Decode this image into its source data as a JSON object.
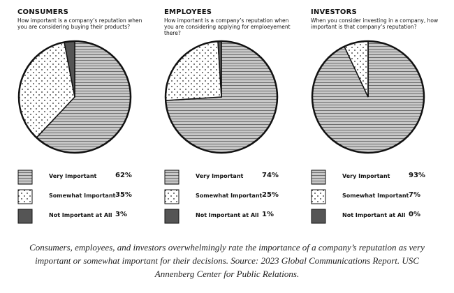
{
  "chart_data": [
    {
      "type": "pie",
      "title": "CONSUMERS",
      "subtitle": "How important is a company’s reputation when you are considering buying their products?",
      "categories": [
        "Very Important",
        "Somewhat Important",
        "Not Important at All"
      ],
      "values": [
        62,
        35,
        3
      ],
      "value_labels": [
        "62%",
        "35%",
        "3%"
      ],
      "colors": [
        "#c8c8c8",
        "#ffffff",
        "#555555"
      ],
      "patterns": [
        "lines",
        "dots",
        "solid"
      ]
    },
    {
      "type": "pie",
      "title": "EMPLOYEES",
      "subtitle": "How important is a company’s reputation when you are considering applying for emploeyement there?",
      "categories": [
        "Very Important",
        "Somewhat Important",
        "Not Important at All"
      ],
      "values": [
        74,
        25,
        1
      ],
      "value_labels": [
        "74%",
        "25%",
        "1%"
      ],
      "colors": [
        "#c8c8c8",
        "#ffffff",
        "#555555"
      ],
      "patterns": [
        "lines",
        "dots",
        "solid"
      ]
    },
    {
      "type": "pie",
      "title": "INVESTORS",
      "subtitle": "When you consider investing in a company, how important is that company’s reputation?",
      "categories": [
        "Very Important",
        "Somewhat Important",
        "Not Important at All"
      ],
      "values": [
        93,
        7,
        0
      ],
      "value_labels": [
        "93%",
        "7%",
        "0%"
      ],
      "colors": [
        "#c8c8c8",
        "#ffffff",
        "#555555"
      ],
      "patterns": [
        "lines",
        "dots",
        "solid"
      ]
    }
  ],
  "caption": "Consumers, employees, and investors overwhelmingly rate the importance of a company’s reputation as very important or somewhat important for their decisions. Source: 2023 Global Communications Report. USC Annenberg Center for Public Relations."
}
